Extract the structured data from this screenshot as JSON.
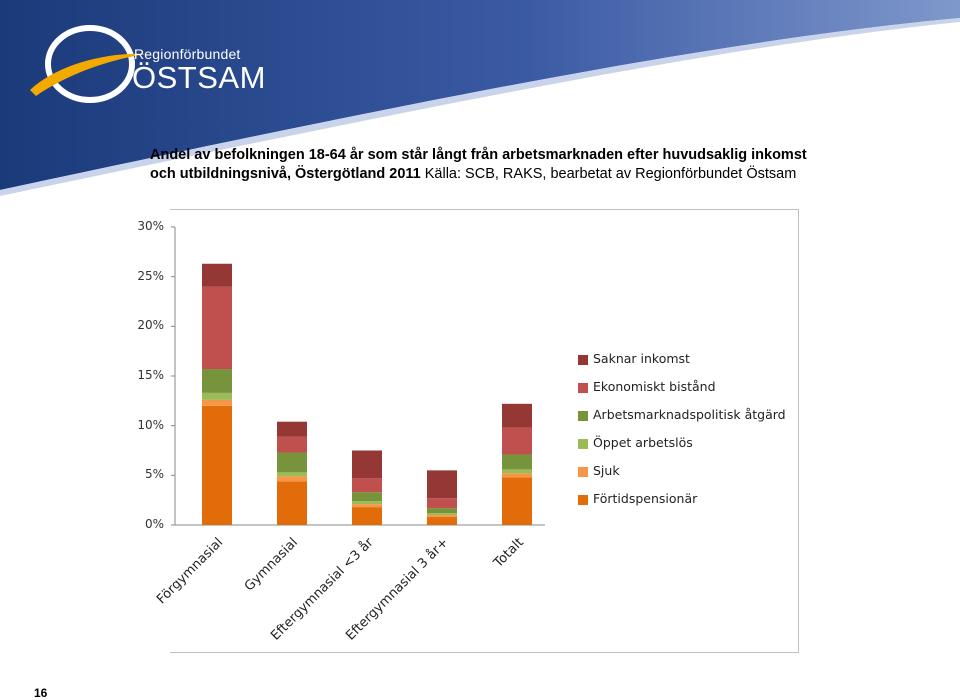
{
  "header": {
    "logo_top": "Regionförbundet",
    "logo_main": "ÖSTSAM"
  },
  "title": {
    "bold_line1": "Andel av befolkningen 18-64 år som står långt från arbetsmarknaden efter huvudsaklig inkomst",
    "bold_line2": "och utbildningsnivå, Östergötland 2011",
    "source": "Källa: SCB, RAKS, bearbetat av Regionförbundet Östsam"
  },
  "page_number": "16",
  "colors": {
    "banner_dark": "#1a3a7a",
    "banner_light": "#6e8ac4",
    "logo_ring": "#ffffff",
    "logo_swoosh": "#f2a900"
  },
  "chart_data": {
    "type": "bar",
    "stacked": true,
    "title": "",
    "xlabel": "",
    "ylabel": "",
    "ylim": [
      0,
      30
    ],
    "y_ticks": [
      0,
      5,
      10,
      15,
      20,
      25,
      30
    ],
    "y_tick_labels": [
      "0%",
      "5%",
      "10%",
      "15%",
      "20%",
      "25%",
      "30%"
    ],
    "categories": [
      "Förgymnasial",
      "Gymnasial",
      "Eftergymnasial <3 år",
      "Eftergymnasial 3 år+",
      "Totalt"
    ],
    "legend_position": "right",
    "series": [
      {
        "name": "Förtidspensionär",
        "color": "#e36c0a",
        "values": [
          12.0,
          4.4,
          1.8,
          0.8,
          4.8
        ]
      },
      {
        "name": "Sjuk",
        "color": "#f79646",
        "values": [
          0.6,
          0.5,
          0.3,
          0.2,
          0.4
        ]
      },
      {
        "name": "Öppet arbetslös",
        "color": "#9bbb59",
        "values": [
          0.7,
          0.4,
          0.3,
          0.2,
          0.4
        ]
      },
      {
        "name": "Arbetsmarknadspolitisk åtgärd",
        "color": "#77933c",
        "values": [
          2.4,
          2.0,
          0.9,
          0.5,
          1.5
        ]
      },
      {
        "name": "Ekonomiskt bistånd",
        "color": "#c0504d",
        "values": [
          8.3,
          1.6,
          1.4,
          1.0,
          2.7
        ]
      },
      {
        "name": "Saknar inkomst",
        "color": "#953735",
        "values": [
          2.3,
          1.5,
          2.8,
          2.8,
          2.4
        ]
      }
    ],
    "legend_order": [
      "Saknar inkomst",
      "Ekonomiskt bistånd",
      "Arbetsmarknadspolitisk åtgärd",
      "Öppet arbetslös",
      "Sjuk",
      "Förtidspensionär"
    ]
  }
}
